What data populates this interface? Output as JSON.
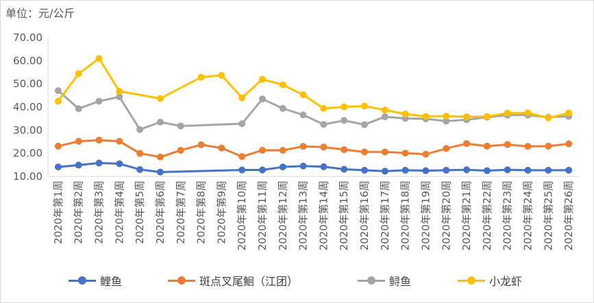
{
  "unit_label": "单位：元/公斤",
  "chart_data": {
    "type": "line",
    "title": "",
    "xlabel": "",
    "ylabel": "单位：元/公斤",
    "ylim": [
      10,
      70
    ],
    "yticks": [
      "10.00",
      "20.00",
      "30.00",
      "40.00",
      "50.00",
      "60.00",
      "70.00"
    ],
    "grid": false,
    "legend_position": "bottom",
    "categories": [
      "2020年第1周",
      "2020年第2周",
      "2020年第3周",
      "2020年第4周",
      "2020年第5周",
      "2020年第6周",
      "2020年第7周",
      "2020年第8周",
      "2020年第9周",
      "2020年第10周",
      "2020年第11周",
      "2020年第12周",
      "2020年第13周",
      "2020年第14周",
      "2020年第15周",
      "2020年第16周",
      "2020年第17周",
      "2020年第18周",
      "2020年第19周",
      "2020年第20周",
      "2020年第21周",
      "2020年第22周",
      "2020年第23周",
      "2020年第24周",
      "2020年第25周",
      "2020年第26周"
    ],
    "series": [
      {
        "name": "鲤鱼",
        "color": "#4472c4",
        "values": [
          14.1,
          14.9,
          15.8,
          15.5,
          13.0,
          11.9,
          null,
          null,
          null,
          12.8,
          12.8,
          14.1,
          14.5,
          14.2,
          13.1,
          12.7,
          12.3,
          12.7,
          12.5,
          12.7,
          12.9,
          12.5,
          12.9,
          12.7,
          12.7,
          12.7
        ]
      },
      {
        "name": "斑点叉尾鮰（江团）",
        "color": "#ed7d31",
        "values": [
          23.1,
          25.2,
          25.7,
          25.2,
          20.0,
          18.4,
          21.3,
          23.7,
          22.3,
          18.6,
          21.3,
          21.3,
          23.0,
          22.7,
          21.6,
          20.6,
          20.6,
          20.1,
          19.6,
          22.1,
          24.2,
          23.1,
          23.8,
          23.0,
          23.1,
          24.1
        ]
      },
      {
        "name": "鲟鱼",
        "color": "#a5a5a5",
        "values": [
          47.1,
          39.3,
          42.5,
          44.4,
          30.3,
          33.5,
          31.8,
          null,
          null,
          32.8,
          43.5,
          39.4,
          36.6,
          32.5,
          34.2,
          32.4,
          35.8,
          35.1,
          34.9,
          33.9,
          34.5,
          35.6,
          36.5,
          36.5,
          35.6,
          36.0
        ]
      },
      {
        "name": "小龙虾",
        "color": "#ffc000",
        "values": [
          42.5,
          54.4,
          61.0,
          46.8,
          null,
          43.7,
          null,
          52.9,
          53.7,
          44.0,
          52.0,
          49.6,
          45.3,
          39.4,
          40.1,
          40.4,
          38.7,
          37.0,
          35.9,
          36.1,
          35.8,
          35.9,
          37.4,
          37.5,
          35.3,
          37.4
        ]
      }
    ]
  }
}
